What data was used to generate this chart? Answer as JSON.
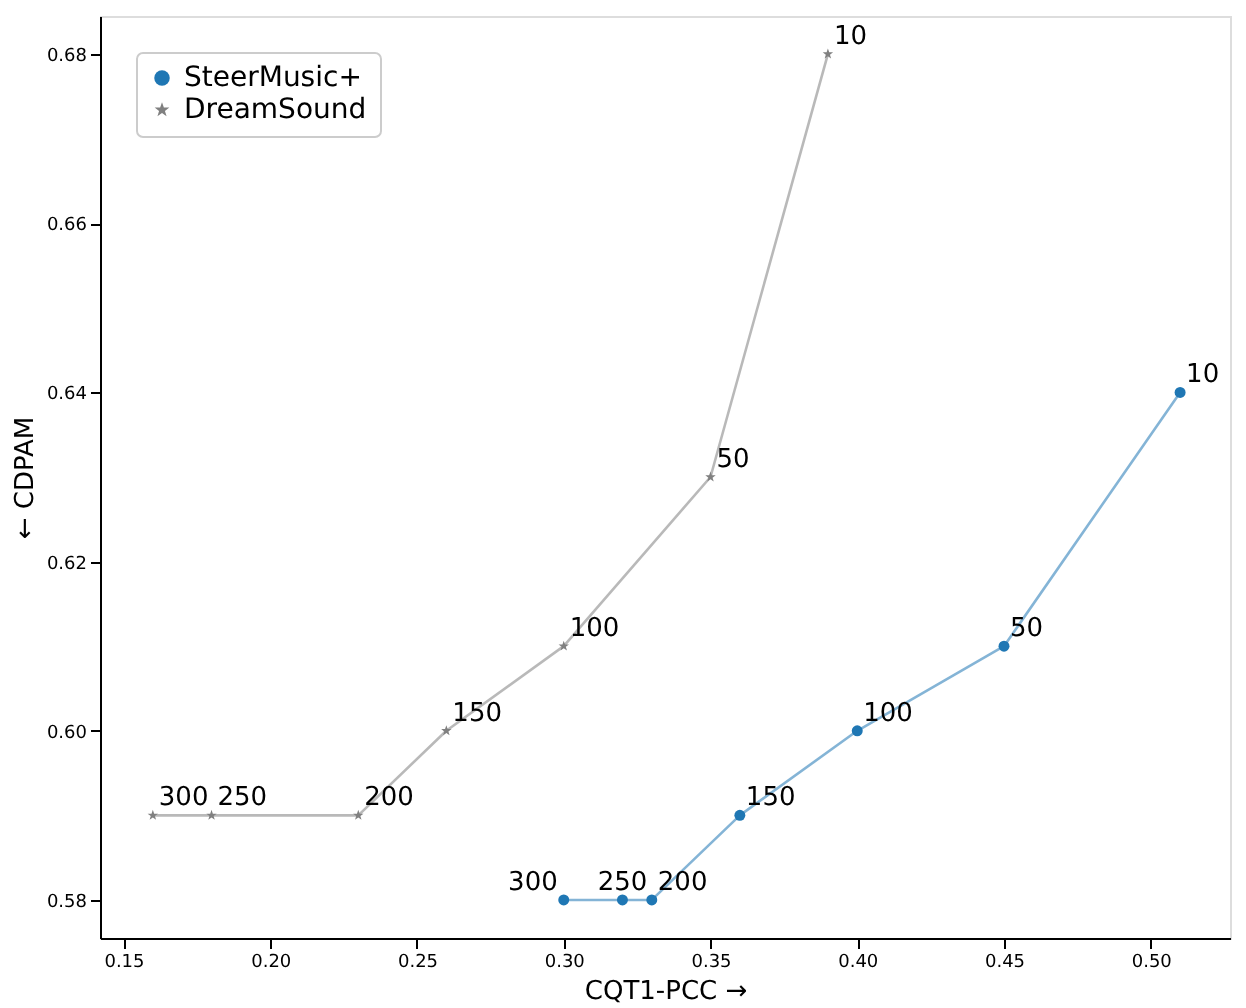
{
  "chart_data": {
    "type": "line",
    "xlabel": "CQT1-PCC →",
    "ylabel": "← CDPAM",
    "xlim": [
      0.142,
      0.527
    ],
    "xticks": [
      0.15,
      {
        "value": 0.2,
        "label": "0.20"
      },
      0.25,
      {
        "value": 0.3,
        "label": "0.30"
      },
      0.35,
      {
        "value": 0.4,
        "label": "0.40"
      },
      0.45,
      {
        "value": 0.5,
        "label": "0.50"
      }
    ],
    "ylim": [
      0.5755,
      0.6845
    ],
    "yticks": [
      0.58,
      {
        "value": 0.6,
        "label": "0.60"
      },
      0.62,
      0.64,
      0.66,
      0.68
    ],
    "grid": false,
    "legend": "top left",
    "series": [
      {
        "name": "SteerMusic+",
        "color": "#1f77b4",
        "marker": "circle",
        "x": [
          0.3,
          0.32,
          0.33,
          0.36,
          0.4,
          0.45,
          0.51
        ],
        "values": [
          0.58,
          0.58,
          0.58,
          0.59,
          0.6,
          0.61,
          0.64
        ]
      },
      {
        "name": "DreamSound",
        "color": "#808080",
        "marker": "star",
        "x": [
          0.16,
          0.18,
          0.23,
          0.26,
          0.3,
          0.35,
          0.39
        ],
        "values": [
          0.59,
          0.59,
          0.59,
          0.6,
          0.61,
          0.63,
          0.68
        ]
      }
    ],
    "annotations": [
      {
        "text": "300",
        "x": 0.3,
        "y": 0.58
      },
      {
        "text": "250",
        "x": 0.32,
        "y": 0.58
      },
      {
        "text": "200",
        "x": 0.33,
        "y": 0.58
      },
      {
        "text": "150",
        "x": 0.36,
        "y": 0.59
      },
      {
        "text": "100",
        "x": 0.4,
        "y": 0.6
      },
      {
        "text": "50",
        "x": 0.45,
        "y": 0.61
      },
      {
        "text": "10",
        "x": 0.51,
        "y": 0.64
      },
      {
        "text": "300",
        "x": 0.16,
        "y": 0.59
      },
      {
        "text": "250",
        "x": 0.18,
        "y": 0.59
      },
      {
        "text": "200",
        "x": 0.23,
        "y": 0.59
      },
      {
        "text": "150",
        "x": 0.26,
        "y": 0.6
      },
      {
        "text": "100",
        "x": 0.3,
        "y": 0.61
      },
      {
        "text": "50",
        "x": 0.35,
        "y": 0.63
      },
      {
        "text": "10",
        "x": 0.39,
        "y": 0.68
      }
    ]
  }
}
